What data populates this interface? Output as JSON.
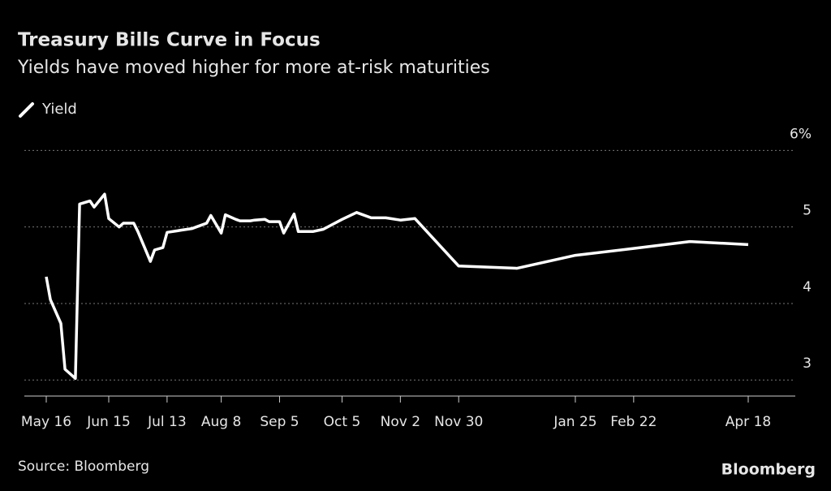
{
  "chart_data": {
    "type": "line",
    "title": "Treasury Bills Curve in Focus",
    "subtitle": "Yields have moved higher for more at-risk maturities",
    "source": "Source: Bloomberg",
    "brand": "Bloomberg",
    "x": [
      "May 16",
      "May 18",
      "May 23",
      "May 25",
      "May 30",
      "Jun 1",
      "Jun 6",
      "Jun 8",
      "Jun 13",
      "Jun 15",
      "Jun 20",
      "Jun 22",
      "Jun 27",
      "Jun 29",
      "Jul 3",
      "Jul 5",
      "Jul 7",
      "Jul 11",
      "Jul 13",
      "Jul 18",
      "Jul 20",
      "Jul 25",
      "Jul 27",
      "Aug 1",
      "Aug 3",
      "Aug 8",
      "Aug 10",
      "Aug 15",
      "Aug 17",
      "Aug 22",
      "Aug 24",
      "Aug 29",
      "Aug 31",
      "Sep 5",
      "Sep 7",
      "Sep 12",
      "Sep 14",
      "Sep 21",
      "Sep 26",
      "Oct 5",
      "Oct 12",
      "Oct 19",
      "Oct 26",
      "Nov 2",
      "Nov 9",
      "Nov 30",
      "Dec 28",
      "Jan 25",
      "Feb 22",
      "Mar 21",
      "Apr 18"
    ],
    "series": [
      {
        "name": "Yield",
        "color": "#ffffff",
        "values": [
          4.35,
          4.05,
          3.74,
          3.14,
          3.02,
          5.3,
          5.34,
          5.26,
          5.43,
          5.11,
          5.0,
          5.05,
          5.05,
          4.94,
          4.68,
          4.55,
          4.7,
          4.73,
          4.93,
          4.95,
          4.96,
          4.98,
          5.0,
          5.05,
          5.15,
          4.92,
          5.16,
          5.1,
          5.08,
          5.08,
          5.09,
          5.1,
          5.07,
          5.07,
          4.92,
          5.17,
          4.94,
          4.94,
          4.97,
          5.1,
          5.19,
          5.12,
          5.12,
          5.09,
          5.11,
          4.49,
          4.46,
          4.63,
          4.72,
          4.81,
          4.77
        ]
      }
    ],
    "xticks": [
      "May 16",
      "Jun 15",
      "Jul 13",
      "Aug 8",
      "Sep 5",
      "Oct 5",
      "Nov 2",
      "Nov 30",
      "Jan 25",
      "Feb 22",
      "Apr 18"
    ],
    "ylim": [
      2.79,
      6.1
    ],
    "yticks": [
      3,
      4,
      5,
      {
        "value": 6,
        "label": "6%"
      }
    ],
    "grid": true
  }
}
